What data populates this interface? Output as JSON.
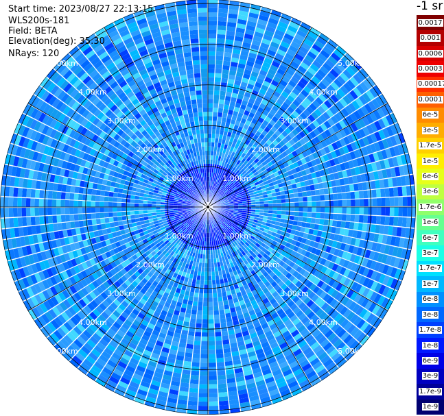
{
  "header": {
    "start_time": "Start time: 2023/08/27 22:13:15",
    "station": "WLS200s-181",
    "field": "Field: BETA",
    "elevation": "Elevation(deg): 35.30",
    "nrays": "NRays: 120"
  },
  "colorbar": {
    "title": "-1 sr",
    "labels": [
      "0.0017",
      "0.001",
      "0.0006",
      "0.0003",
      "0.00017",
      "0.0001",
      "6e-5",
      "3e-5",
      "1.7e-5",
      "1e-5",
      "6e-6",
      "3e-6",
      "1.7e-6",
      "1e-6",
      "6e-7",
      "3e-7",
      "1.7e-7",
      "1e-7",
      "6e-8",
      "3e-8",
      "1.7e-8",
      "1e-8",
      "6e-9",
      "3e-9",
      "1.7e-9",
      "1e-9"
    ],
    "colors": [
      "#800000",
      "#b30000",
      "#d90000",
      "#ee0000",
      "#ff3000",
      "#ff6000",
      "#ff8c00",
      "#ffad00",
      "#ffd000",
      "#ffee00",
      "#e6ff1a",
      "#bfff40",
      "#90ff6a",
      "#66ff90",
      "#40ffbf",
      "#1affe6",
      "#00e0ff",
      "#00b8ff",
      "#0090ff",
      "#0068ff",
      "#0040ff",
      "#0018ff",
      "#0000e6",
      "#0000c0",
      "#000099",
      "#000070"
    ]
  },
  "chart_data": {
    "type": "polar_ppi",
    "title": "",
    "n_rays": 120,
    "elevation_deg": 35.3,
    "field": "BETA",
    "units": "sr-1",
    "range_rings": [
      {
        "value_km": 1.0,
        "label": "1.00km"
      },
      {
        "value_km": 2.0,
        "label": "2.00km"
      },
      {
        "value_km": 3.0,
        "label": "3.00km"
      },
      {
        "value_km": 4.0,
        "label": "4.00km"
      },
      {
        "value_km": 5.0,
        "label": "5.00km"
      }
    ],
    "max_range_km": 5.1,
    "spoke_angles_deg": [
      0,
      30,
      60,
      90,
      120,
      150,
      180,
      210,
      240,
      270,
      300,
      330
    ],
    "dominant_color": "#1a8fff",
    "near_field_color": "#0018ff",
    "accent_colors": [
      "#00b8ff",
      "#0068ff",
      "#40e0ff"
    ]
  }
}
